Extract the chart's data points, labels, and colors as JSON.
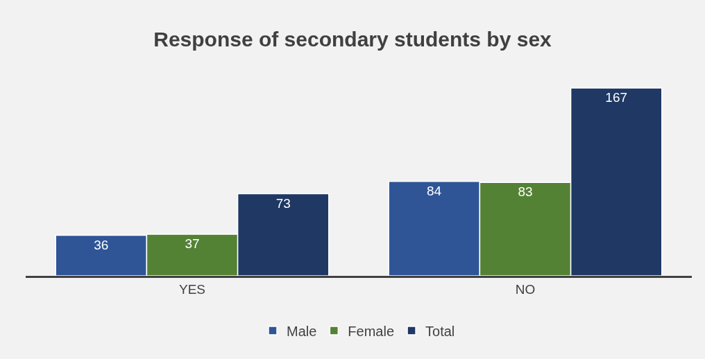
{
  "chart_data": {
    "type": "bar",
    "title": "Response of secondary students by sex",
    "categories": [
      "YES",
      "NO"
    ],
    "series": [
      {
        "name": "Male",
        "color": "#2f5597",
        "values": [
          36,
          84
        ]
      },
      {
        "name": "Female",
        "color": "#548235",
        "values": [
          37,
          83
        ]
      },
      {
        "name": "Total",
        "color": "#1f3864",
        "values": [
          73,
          167
        ]
      }
    ],
    "data_labels": true,
    "grid": false,
    "legend": "bottom"
  }
}
